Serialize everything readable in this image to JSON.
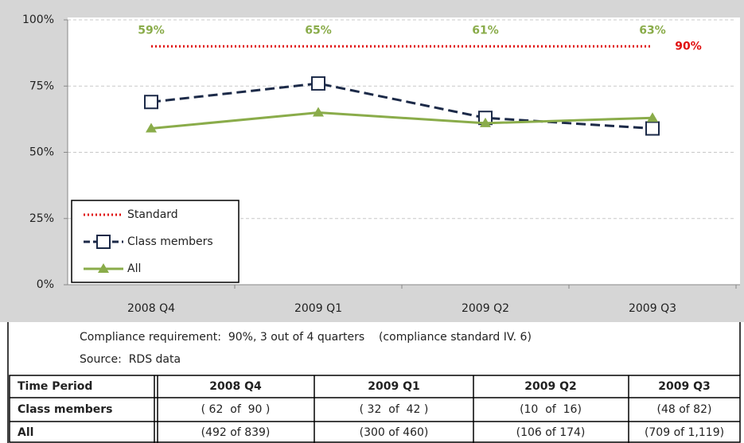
{
  "chart_data": {
    "type": "line",
    "categories": [
      "2008 Q4",
      "2009 Q1",
      "2009 Q2",
      "2009 Q3"
    ],
    "series": [
      {
        "name": "Standard",
        "color": "#e01010",
        "style": "dotted",
        "values": [
          90,
          90,
          90,
          90
        ],
        "end_label": "90%"
      },
      {
        "name": "Class members",
        "color": "#1c2a48",
        "style": "dashed",
        "marker": "square",
        "values": [
          69,
          76,
          63,
          59
        ]
      },
      {
        "name": "All",
        "color": "#8aac4a",
        "style": "solid",
        "marker": "triangle",
        "values": [
          59,
          65,
          61,
          63
        ],
        "value_labels": [
          "59%",
          "65%",
          "61%",
          "63%"
        ]
      }
    ],
    "ylim": [
      0,
      100
    ],
    "yticks": [
      {
        "value": 0,
        "label": "0%"
      },
      {
        "value": 25,
        "label": "25%"
      },
      {
        "value": 50,
        "label": "50%"
      },
      {
        "value": 75,
        "label": "75%"
      },
      {
        "value": 100,
        "label": "100%"
      }
    ],
    "grid": true,
    "legend": "bottom-left"
  },
  "notes": {
    "requirement": "Compliance requirement:  90%, 3 out of 4 quarters    (compliance standard IV. 6)",
    "source": "Source:  RDS data"
  },
  "table": {
    "header": [
      "Time Period",
      "2008 Q4",
      "2009 Q1",
      "2009 Q2",
      "2009 Q3"
    ],
    "rows": [
      [
        "Class members",
        "( 62  of  90 )",
        "( 32  of  42 )",
        "(10  of  16)",
        "(48 of 82)"
      ],
      [
        "All",
        "(492 of 839)",
        "(300 of 460)",
        "(106 of 174)",
        "(709 of 1,119)"
      ]
    ]
  }
}
